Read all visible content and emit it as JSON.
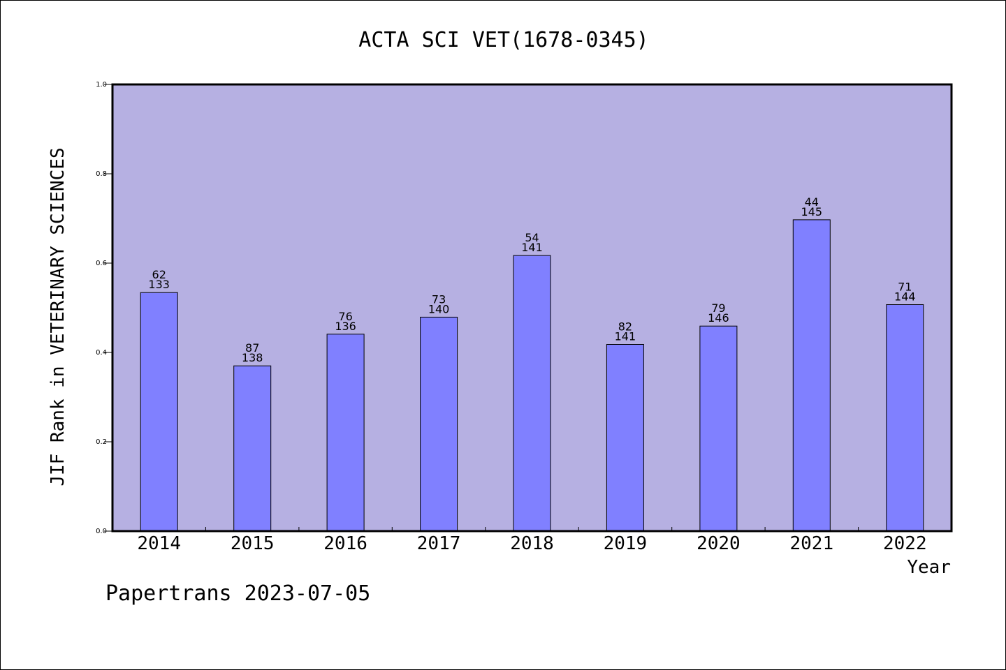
{
  "chart_data": {
    "type": "bar",
    "title": "ACTA SCI VET(1678-0345)",
    "xlabel": "Year",
    "ylabel": "JIF Rank in VETERINARY SCIENCES",
    "categories": [
      "2014",
      "2015",
      "2016",
      "2017",
      "2018",
      "2019",
      "2020",
      "2021",
      "2022"
    ],
    "values": [
      0.534,
      0.37,
      0.441,
      0.479,
      0.617,
      0.418,
      0.459,
      0.697,
      0.507
    ],
    "rank_labels": [
      "62",
      "87",
      "76",
      "73",
      "54",
      "82",
      "79",
      "44",
      "71"
    ],
    "total_labels": [
      "133",
      "138",
      "136",
      "140",
      "141",
      "141",
      "146",
      "145",
      "144"
    ],
    "ylim": [
      0,
      1.0
    ],
    "yticks": [
      "0.0",
      "0.2",
      "0.4",
      "0.6",
      "0.8",
      "1.0"
    ],
    "grid": false,
    "legend": "none",
    "colors": {
      "plot_background": "#b6b0e2",
      "bar_fill": "#8080ff",
      "bar_edge": "#000000",
      "text": "#000000"
    }
  },
  "footer": {
    "note": "Papertrans 2023-07-05"
  }
}
